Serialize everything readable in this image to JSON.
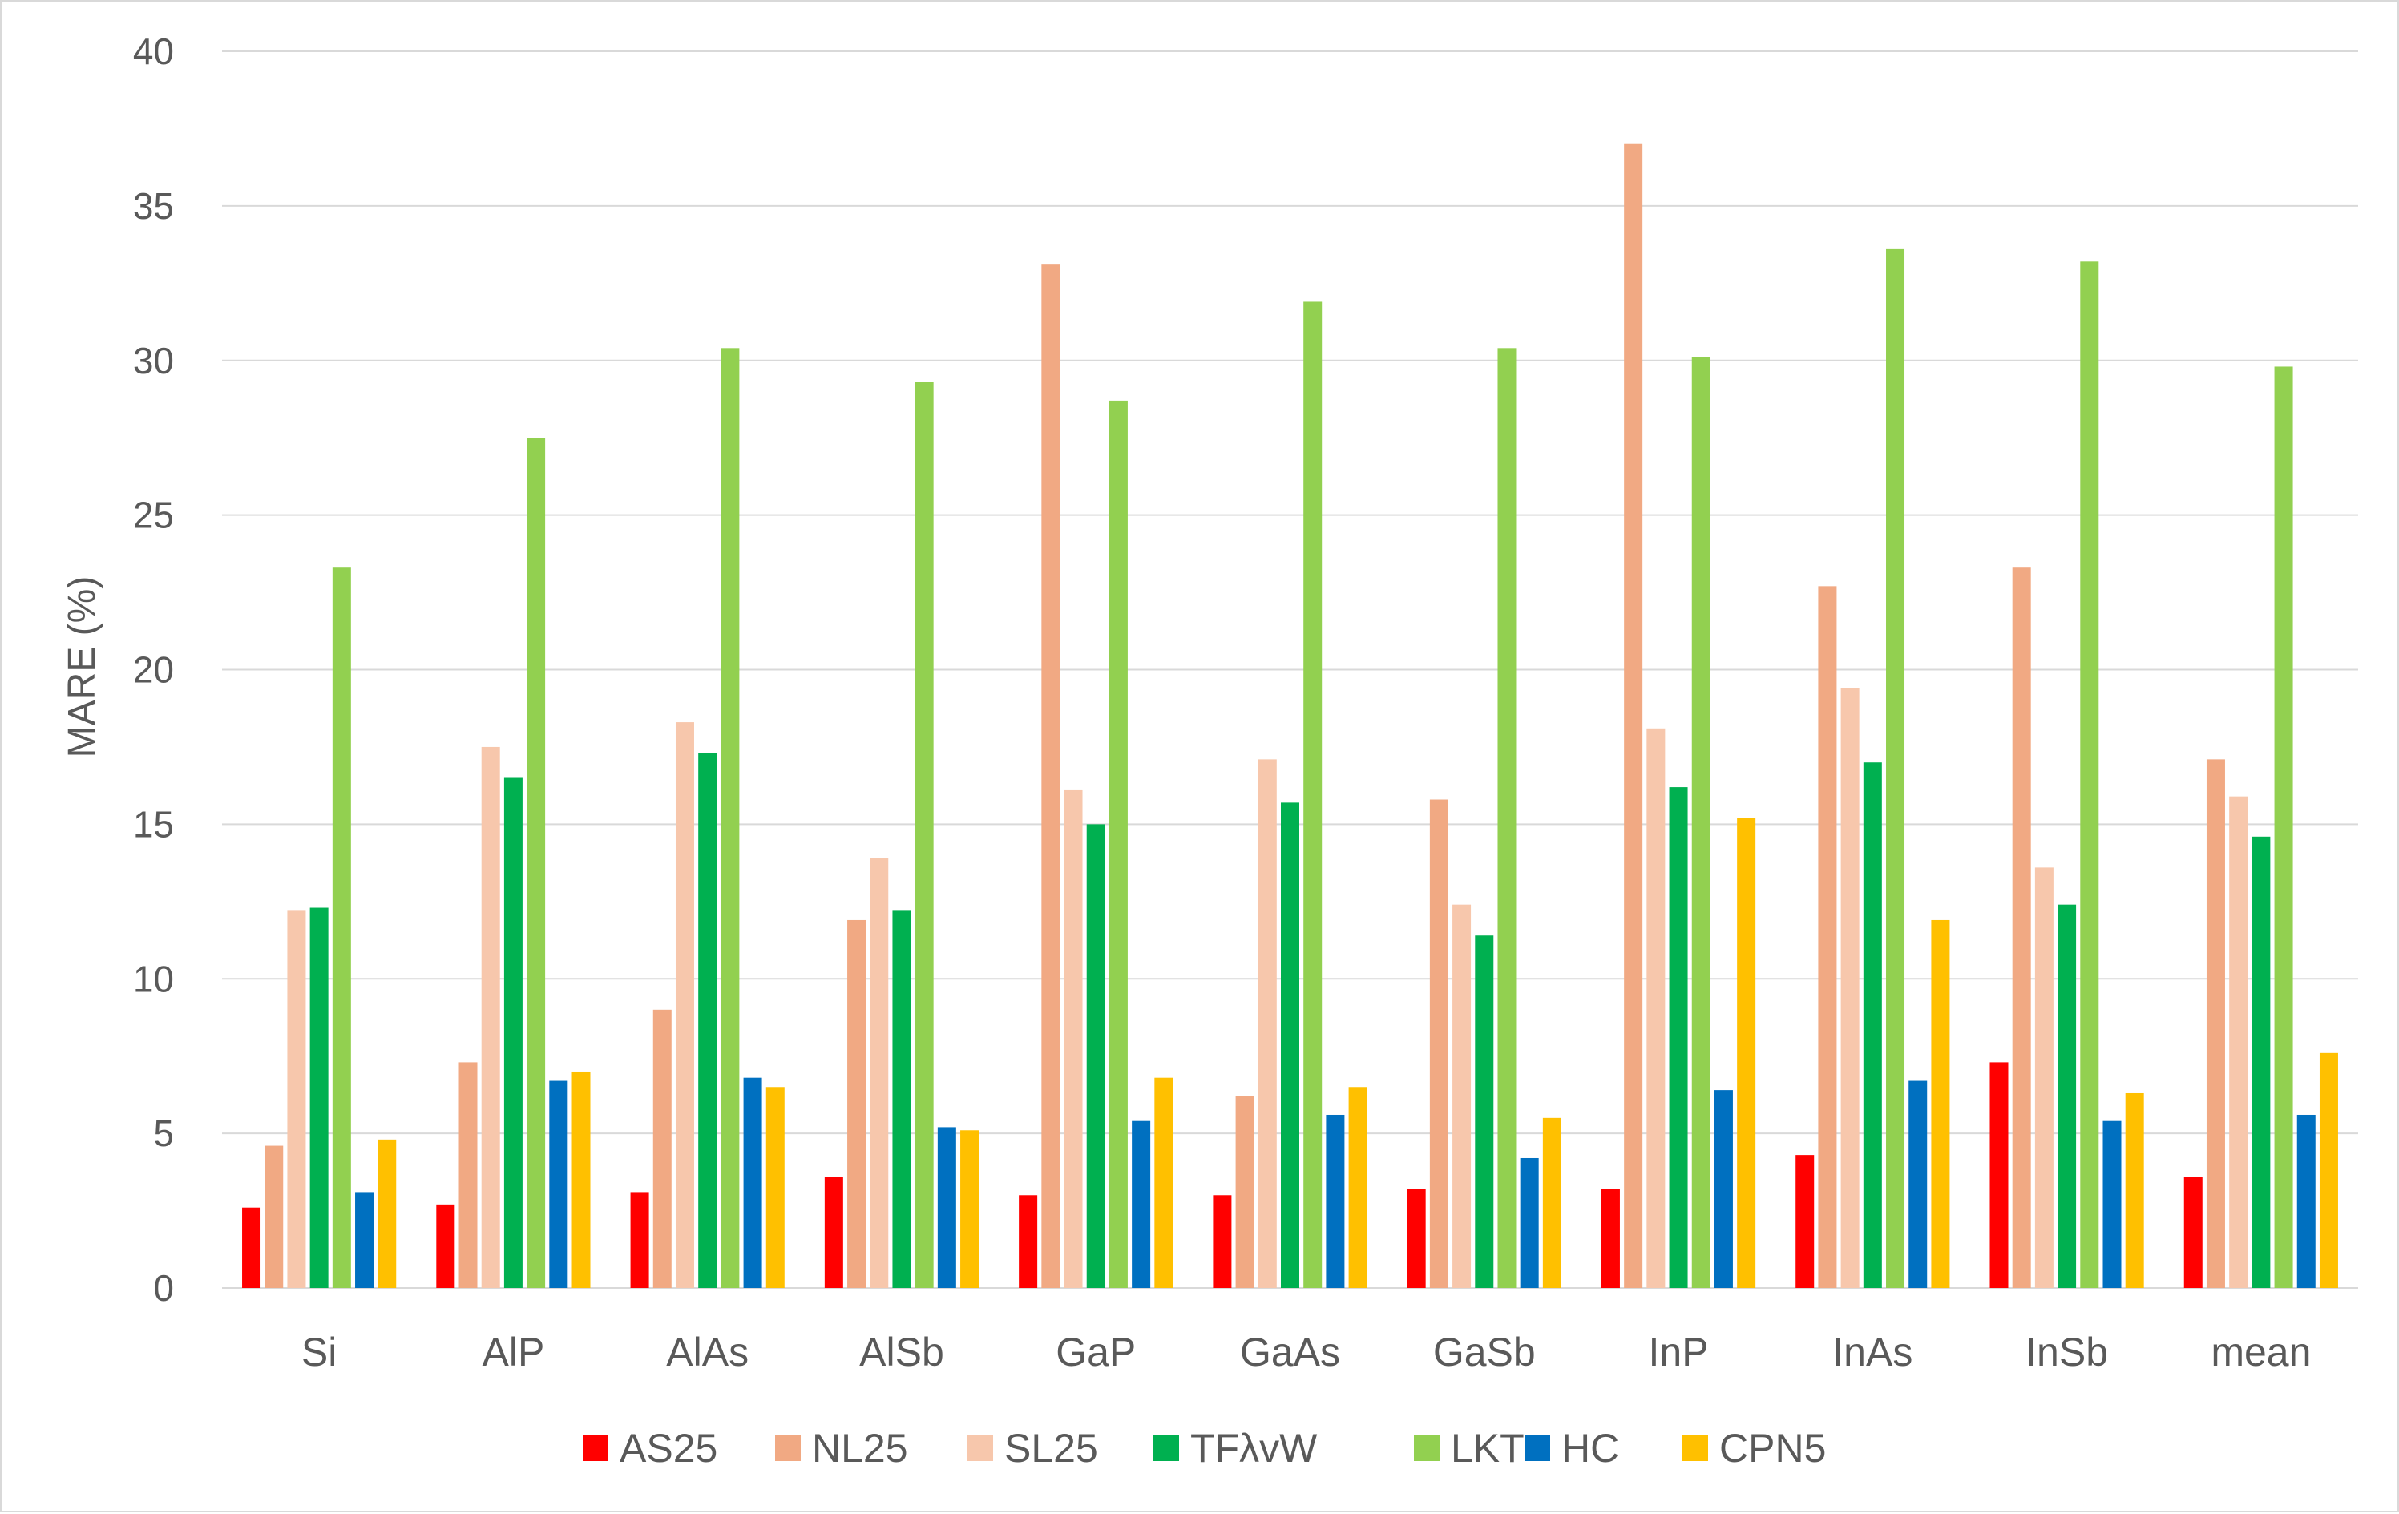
{
  "chart_data": {
    "type": "bar",
    "title": "",
    "xlabel": "",
    "ylabel": "MARE (%)",
    "ylim": [
      0,
      40
    ],
    "ytick_step": 5,
    "yticks": [
      "0",
      "5",
      "10",
      "15",
      "20",
      "25",
      "30",
      "35",
      "40"
    ],
    "grid": true,
    "legend_position": "bottom",
    "categories": [
      "Si",
      "AlP",
      "AlAs",
      "AlSb",
      "GaP",
      "GaAs",
      "GaSb",
      "InP",
      "InAs",
      "InSb",
      "mean"
    ],
    "series": [
      {
        "name": "AS25",
        "color": "#ff0000",
        "values": [
          2.6,
          2.7,
          3.1,
          3.6,
          3.0,
          3.0,
          3.2,
          3.2,
          4.3,
          7.3,
          3.6
        ]
      },
      {
        "name": "NL25",
        "color": "#f1a983",
        "values": [
          4.6,
          7.3,
          9.0,
          11.9,
          33.1,
          6.2,
          15.8,
          37.0,
          22.7,
          23.3,
          17.1
        ]
      },
      {
        "name": "SL25",
        "color": "#f7c7ac",
        "values": [
          12.2,
          17.5,
          18.3,
          13.9,
          16.1,
          17.1,
          12.4,
          18.1,
          19.4,
          13.6,
          15.9
        ]
      },
      {
        "name": "TFλvW",
        "color": "#00b050",
        "values": [
          12.3,
          16.5,
          17.3,
          12.2,
          15.0,
          15.7,
          11.4,
          16.2,
          17.0,
          12.4,
          14.6
        ]
      },
      {
        "name": "LKT",
        "color": "#92d050",
        "values": [
          23.3,
          27.5,
          30.4,
          29.3,
          28.7,
          31.9,
          30.4,
          30.1,
          33.6,
          33.2,
          29.8
        ]
      },
      {
        "name": "HC",
        "color": "#0070c0",
        "values": [
          3.1,
          6.7,
          6.8,
          5.2,
          5.4,
          5.6,
          4.2,
          6.4,
          6.7,
          5.4,
          5.6
        ]
      },
      {
        "name": "CPN5",
        "color": "#ffc000",
        "values": [
          4.8,
          7.0,
          6.5,
          5.1,
          6.8,
          6.5,
          5.5,
          15.2,
          11.9,
          6.3,
          7.6
        ]
      }
    ]
  }
}
